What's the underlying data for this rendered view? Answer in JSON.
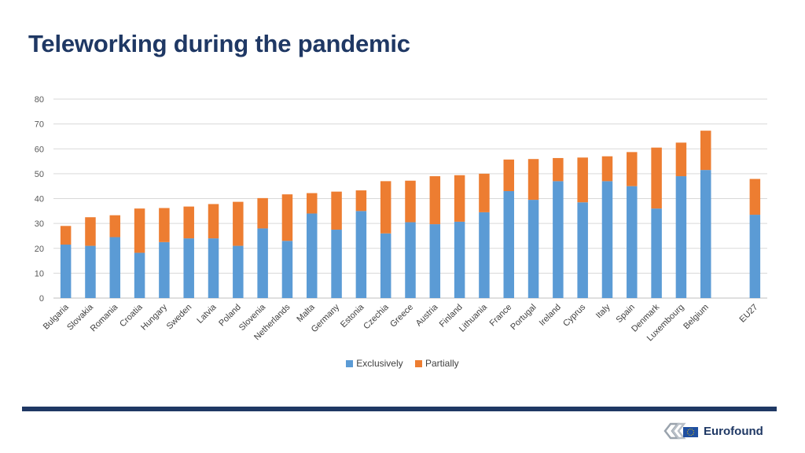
{
  "header": {
    "title": "Teleworking during the pandemic"
  },
  "colors": {
    "exclusively": "#5b9bd5",
    "partially": "#ed7d31",
    "title": "#1f3864",
    "grid": "#d9d9d9"
  },
  "chart_data": {
    "type": "bar",
    "stacked": true,
    "title": "",
    "xlabel": "",
    "ylabel": "",
    "ylim": [
      0,
      80
    ],
    "yticks": [
      0,
      10,
      20,
      30,
      40,
      50,
      60,
      70,
      80
    ],
    "grid": true,
    "legend_position": "bottom",
    "categories": [
      "Bulgaria",
      "Slovakia",
      "Romania",
      "Croatia",
      "Hungary",
      "Sweden",
      "Latvia",
      "Poland",
      "Slovenia",
      "Netherlands",
      "Malta",
      "Germany",
      "Estonia",
      "Czechia",
      "Greece",
      "Austria",
      "Finland",
      "Lithuania",
      "France",
      "Portugal",
      "Ireland",
      "Cyprus",
      "Italy",
      "Spain",
      "Denmark",
      "Luxembourg",
      "Belgium",
      "",
      "EU27"
    ],
    "series": [
      {
        "name": "Exclusively",
        "values": [
          21.5,
          21,
          24.5,
          18.2,
          22.5,
          24,
          24,
          21,
          28,
          23,
          34,
          27.5,
          35,
          26,
          30.5,
          29.7,
          30.7,
          34.5,
          43,
          39.5,
          47,
          38.5,
          47,
          45,
          36,
          49,
          51.5,
          null,
          33.5
        ]
      },
      {
        "name": "Partially",
        "values": [
          7.5,
          11.5,
          8.8,
          17.8,
          13.7,
          12.8,
          13.8,
          17.7,
          12.2,
          18.7,
          8.2,
          15.3,
          8.3,
          21,
          16.7,
          19.3,
          18.7,
          15.5,
          12.7,
          16.4,
          9.3,
          18,
          10,
          13.7,
          24.5,
          13.5,
          15.8,
          null,
          14.4
        ]
      }
    ]
  },
  "legend": {
    "items": [
      "Exclusively",
      "Partially"
    ]
  },
  "footer": {
    "logo_text": "Eurofound"
  }
}
